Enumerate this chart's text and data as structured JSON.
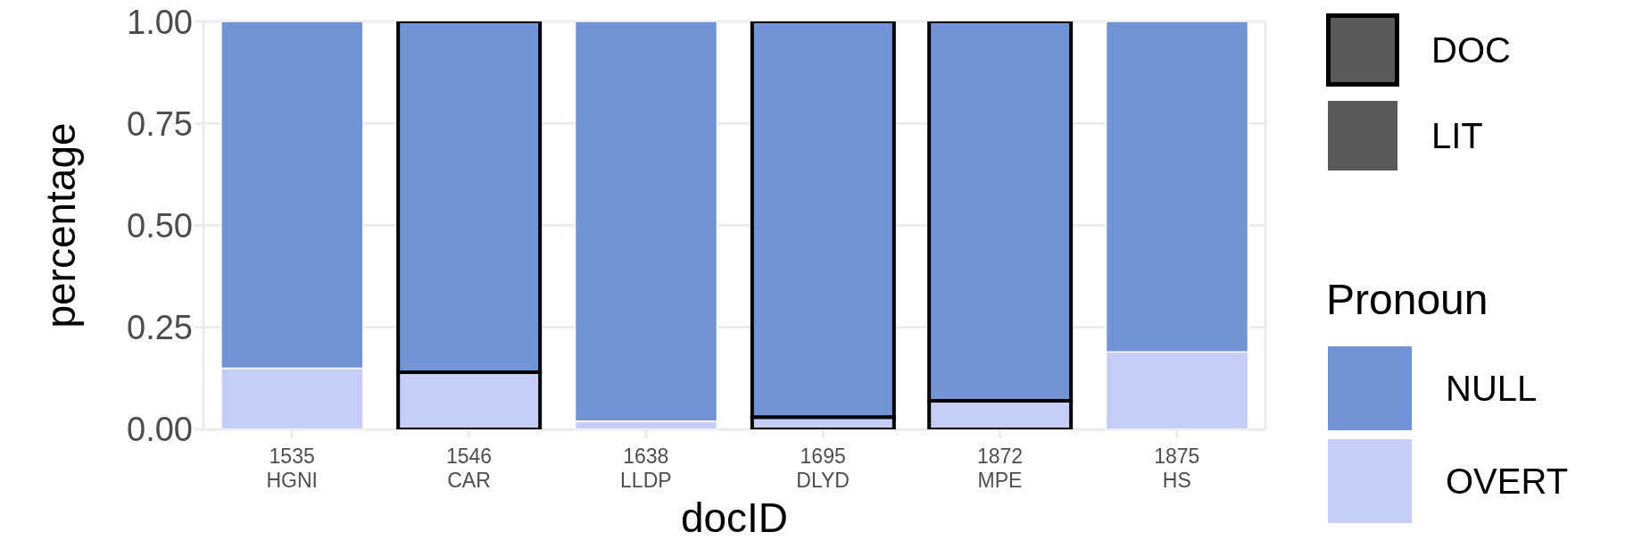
{
  "chart_data": {
    "type": "bar",
    "stacked": true,
    "categories": [
      "1535\nHGNI",
      "1546\nCAR",
      "1638\nLLDP",
      "1695\nDLYD",
      "1872\nMPE",
      "1875\nHS"
    ],
    "series": [
      {
        "name": "OVERT",
        "color": "#c6cdf7",
        "values": [
          0.15,
          null,
          0.02,
          null,
          null,
          0.19
        ]
      },
      {
        "color": "#c6cdf7",
        "line_style": "solid",
        "values": [
          null,
          0.14,
          null,
          0.03,
          0.07,
          null
        ]
      },
      {
        "name": "NULL",
        "color": "#7294d4",
        "values": [
          0.85,
          null,
          0.98,
          null,
          null,
          0.81
        ]
      },
      {
        "color": "#7294d4",
        "line_style": "solid",
        "values": [
          null,
          0.86,
          null,
          0.97,
          0.93,
          null
        ]
      }
    ],
    "xlabel": "docID",
    "ylabel": "percentage",
    "legend_title": "Pronoun",
    "annotations": [
      "DOC",
      "LIT"
    ],
    "ylim": [
      0,
      1
    ],
    "yticks": [
      {
        "value": 0,
        "label": "0.00"
      },
      {
        "value": 0.25,
        "label": "0.25"
      },
      {
        "value": 0.5,
        "label": "0.50"
      },
      {
        "value": 0.75,
        "label": "0.75"
      },
      {
        "value": 1,
        "label": "1.00"
      }
    ],
    "grid": true,
    "legend": "right"
  }
}
